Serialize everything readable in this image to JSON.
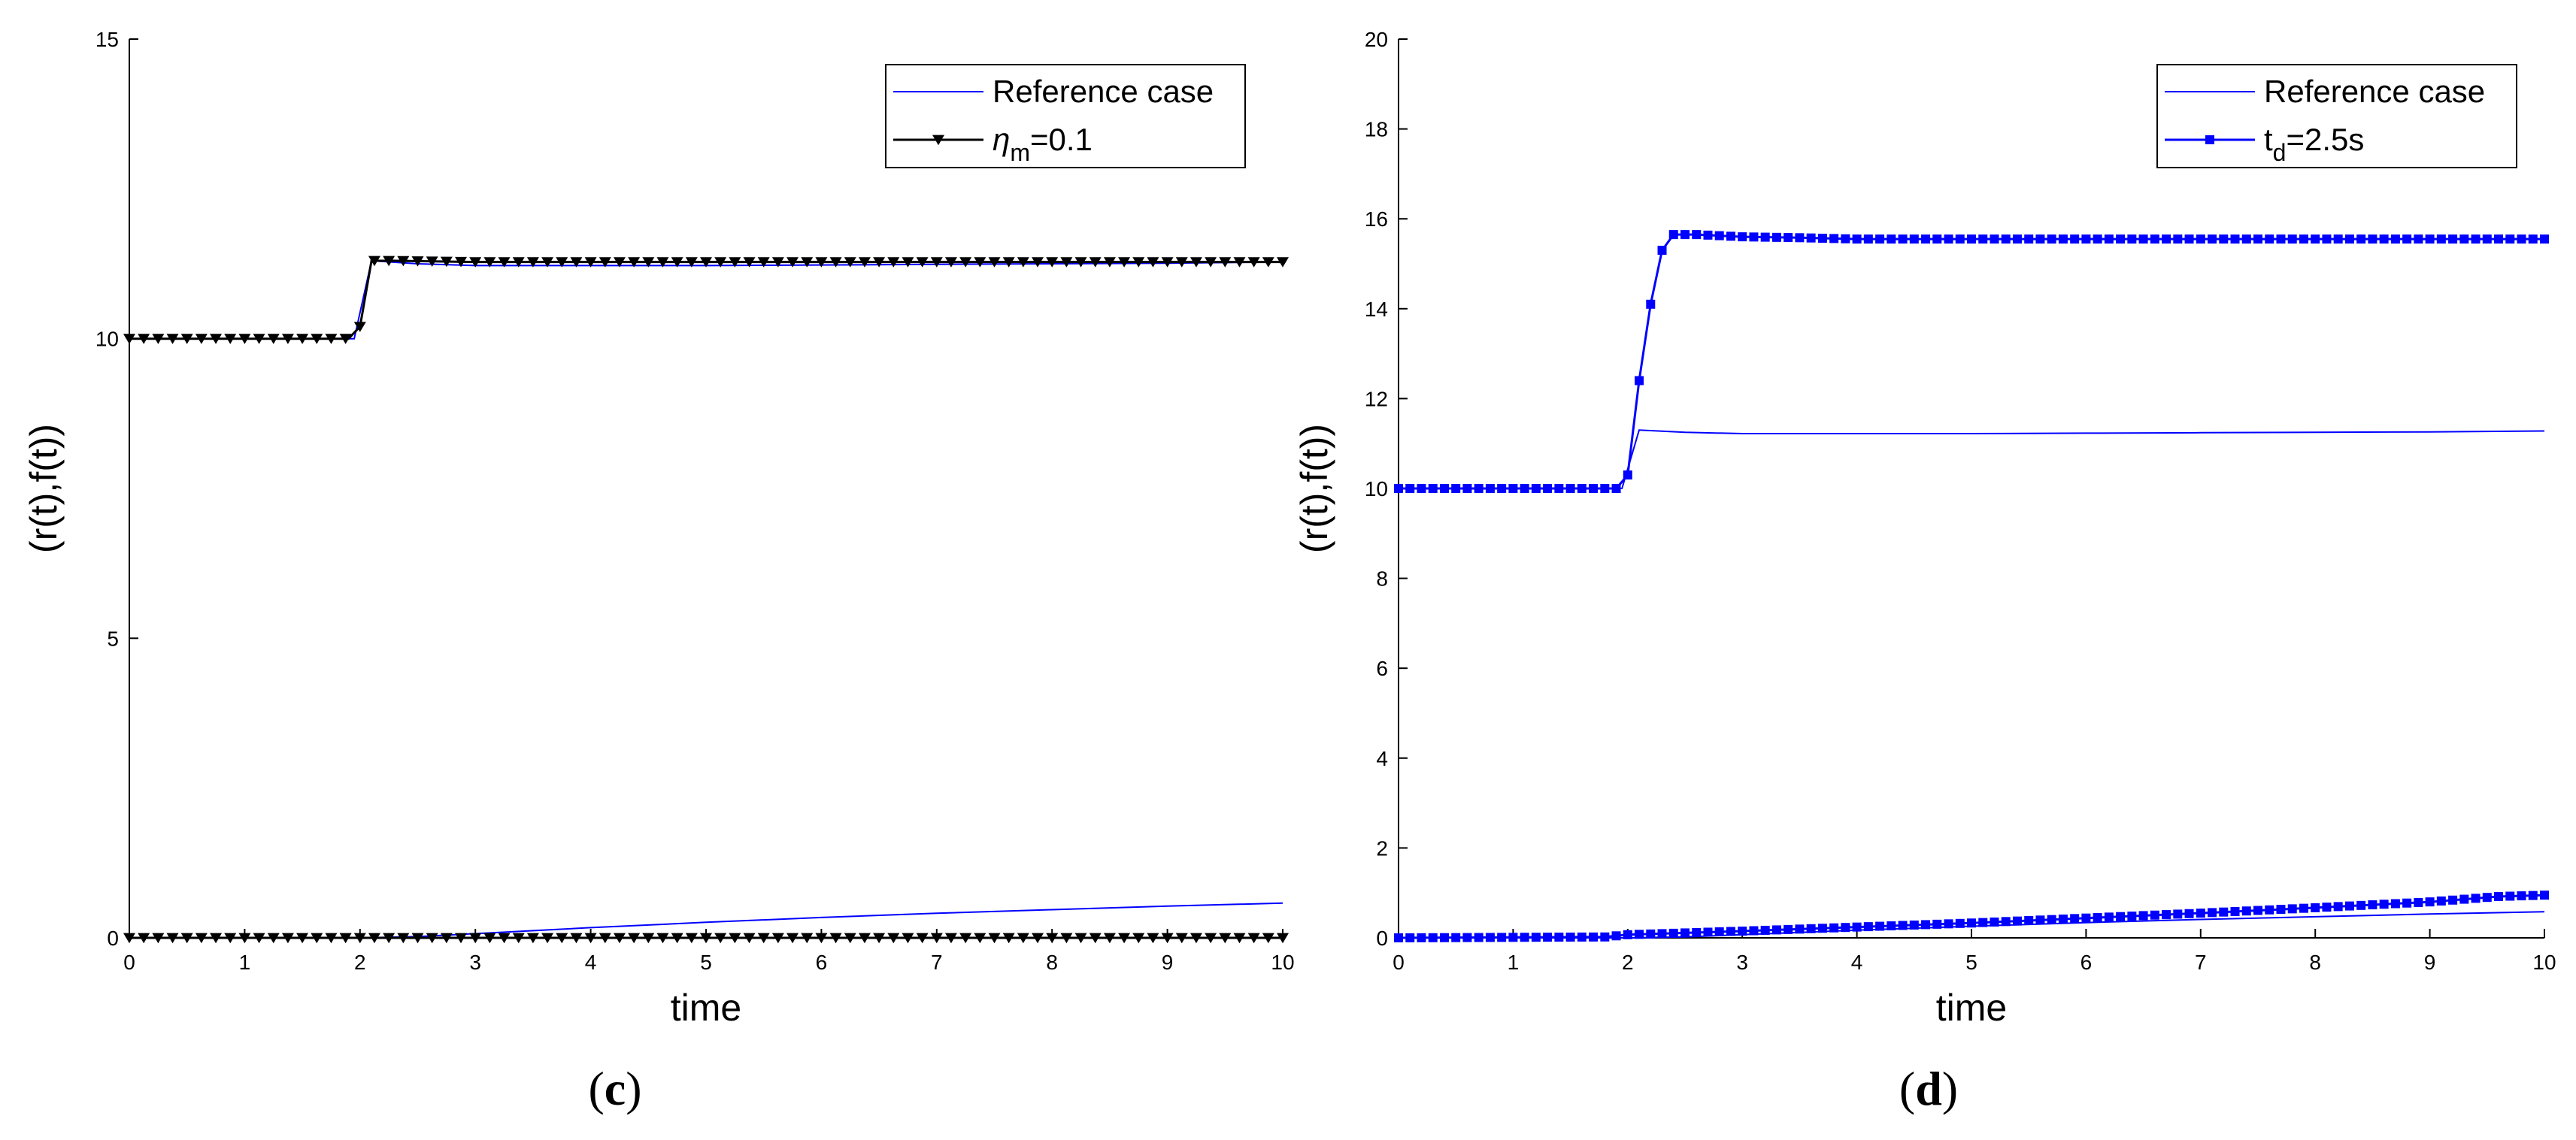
{
  "chart_data": [
    {
      "type": "line",
      "panel": "c",
      "xlabel": "time",
      "ylabel": "(r(t),f(t))",
      "xlim": [
        0,
        10
      ],
      "ylim": [
        0,
        15
      ],
      "xticks": [
        0,
        1,
        2,
        3,
        4,
        5,
        6,
        7,
        8,
        9,
        10
      ],
      "yticks": [
        0,
        5,
        10,
        15
      ],
      "legend_placement": "top-right",
      "series": [
        {
          "name": "Reference case",
          "color": "#0000ff",
          "marker": "none",
          "curves": [
            {
              "x": [
                0,
                1.95,
                2.1,
                2.5,
                3,
                4,
                5,
                6,
                7,
                8,
                9,
                10
              ],
              "y": [
                10,
                10,
                11.3,
                11.25,
                11.22,
                11.22,
                11.22,
                11.23,
                11.24,
                11.25,
                11.26,
                11.28
              ]
            },
            {
              "x": [
                0,
                2,
                2.5,
                3,
                4,
                5,
                6,
                7,
                8,
                9,
                10
              ],
              "y": [
                0,
                0,
                0.02,
                0.07,
                0.17,
                0.26,
                0.34,
                0.41,
                0.47,
                0.53,
                0.58
              ]
            }
          ]
        },
        {
          "name_parts": [
            "η",
            "m",
            "=0.1"
          ],
          "color": "#000000",
          "marker": "triangle-down",
          "curves": [
            {
              "x": [
                0,
                1.9,
                2.0,
                2.1,
                2.3,
                3,
                4,
                5,
                6,
                7,
                8,
                9,
                10
              ],
              "y": [
                10,
                10,
                10.2,
                11.3,
                11.3,
                11.28,
                11.28,
                11.28,
                11.28,
                11.28,
                11.28,
                11.28,
                11.28
              ]
            },
            {
              "x": [
                0,
                10
              ],
              "y": [
                0,
                0
              ]
            }
          ]
        }
      ]
    },
    {
      "type": "line",
      "panel": "d",
      "xlabel": "time",
      "ylabel": "(r(t),f(t))",
      "xlim": [
        0,
        10
      ],
      "ylim": [
        0,
        20
      ],
      "xticks": [
        0,
        1,
        2,
        3,
        4,
        5,
        6,
        7,
        8,
        9,
        10
      ],
      "yticks": [
        0,
        2,
        4,
        6,
        8,
        10,
        12,
        14,
        16,
        18,
        20
      ],
      "legend_placement": "top-right",
      "series": [
        {
          "name": "Reference case",
          "color": "#0000ff",
          "marker": "none",
          "curves": [
            {
              "x": [
                0,
                1.95,
                2.1,
                2.5,
                3,
                4,
                5,
                6,
                7,
                8,
                9,
                10
              ],
              "y": [
                10,
                10,
                11.3,
                11.25,
                11.22,
                11.22,
                11.22,
                11.23,
                11.24,
                11.25,
                11.26,
                11.28
              ]
            },
            {
              "x": [
                0,
                2,
                2.5,
                3,
                4,
                5,
                6,
                7,
                8,
                9,
                10
              ],
              "y": [
                0,
                0,
                0.02,
                0.07,
                0.17,
                0.26,
                0.34,
                0.41,
                0.47,
                0.53,
                0.58
              ]
            }
          ]
        },
        {
          "name_parts": [
            "t",
            "d",
            "=2.5s"
          ],
          "color": "#0000ff",
          "marker": "square",
          "curves": [
            {
              "x": [
                0,
                1.9,
                2.0,
                2.1,
                2.2,
                2.3,
                2.4,
                2.6,
                3.0,
                3.5,
                4,
                5,
                6,
                7,
                8,
                9,
                10
              ],
              "y": [
                10,
                10,
                10.3,
                12.4,
                14.1,
                15.3,
                15.65,
                15.65,
                15.6,
                15.58,
                15.55,
                15.55,
                15.55,
                15.55,
                15.55,
                15.55,
                15.55
              ]
            },
            {
              "x": [
                0,
                1.8,
                2,
                3,
                4,
                5,
                6,
                7,
                8,
                9,
                9.6,
                10
              ],
              "y": [
                0,
                0.02,
                0.07,
                0.15,
                0.24,
                0.33,
                0.44,
                0.55,
                0.67,
                0.8,
                0.92,
                0.95
              ]
            }
          ]
        }
      ]
    }
  ]
}
